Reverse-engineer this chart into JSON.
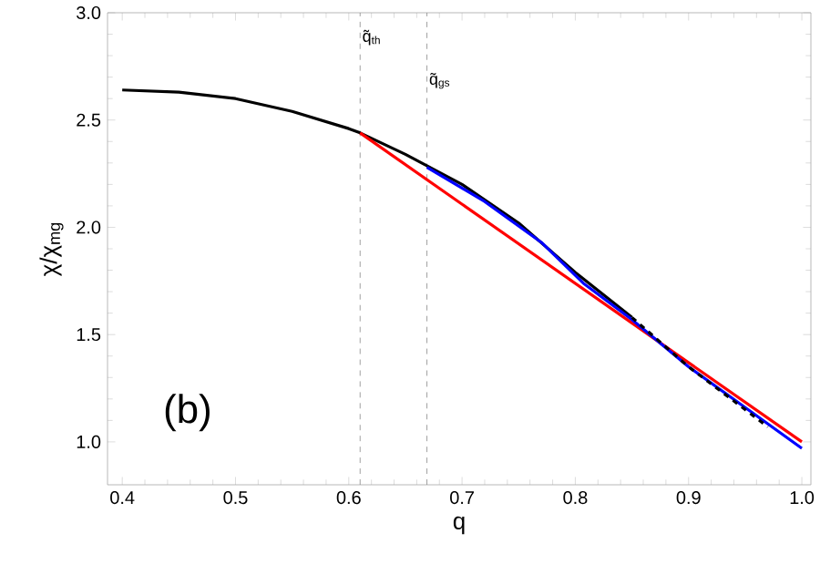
{
  "chart_data": {
    "type": "line",
    "xlabel": "q",
    "ylabel": "χ/χ$_{mg}$",
    "xlim": [
      0.387,
      1.008
    ],
    "ylim": [
      0.8,
      3.0
    ],
    "xticks": [
      0.4,
      0.5,
      0.6,
      0.7,
      0.8,
      0.9,
      {
        "value": 1.0,
        "label": "1.0"
      }
    ],
    "yticks": [
      {
        "value": 1.0,
        "label": "1.0"
      },
      1.5,
      {
        "value": 2.0,
        "label": "2.0"
      },
      2.5,
      {
        "value": 3.0,
        "label": "3.0"
      }
    ],
    "grid": false,
    "marker": "none",
    "series": [
      {
        "color": "#000000",
        "line_style": "solid",
        "x": [
          0.4,
          0.45,
          0.5,
          0.55,
          0.6,
          0.61,
          0.65,
          0.7,
          0.75,
          0.8,
          0.85
        ],
        "values": [
          2.64,
          2.63,
          2.6,
          2.54,
          2.46,
          2.44,
          2.34,
          2.2,
          2.02,
          1.79,
          1.58
        ]
      },
      {
        "color": "#ff0000",
        "line_style": "solid",
        "x": [
          0.61,
          1.0
        ],
        "values": [
          2.44,
          1.0
        ]
      },
      {
        "color": "#0000ff",
        "line_style": "solid",
        "x": [
          0.669,
          0.72,
          0.77,
          0.807,
          0.85,
          0.9,
          0.95,
          1.0
        ],
        "values": [
          2.28,
          2.12,
          1.93,
          1.74,
          1.57,
          1.35,
          1.16,
          0.97
        ]
      },
      {
        "color": "#000000",
        "line_style": "dashed",
        "x": [
          0.85,
          0.9,
          0.95,
          0.97
        ],
        "values": [
          1.58,
          1.35,
          1.15,
          1.07
        ]
      }
    ],
    "ref_lines": [
      {
        "axis": "x",
        "value": 0.61,
        "label": "q̃$_{th}$",
        "color": "#888888",
        "line_style": "dashed"
      },
      {
        "axis": "x",
        "value": 0.669,
        "label": "q̃$_{gs}$",
        "color": "#888888",
        "line_style": "dashed"
      }
    ],
    "annotations": [
      "(b)"
    ]
  }
}
